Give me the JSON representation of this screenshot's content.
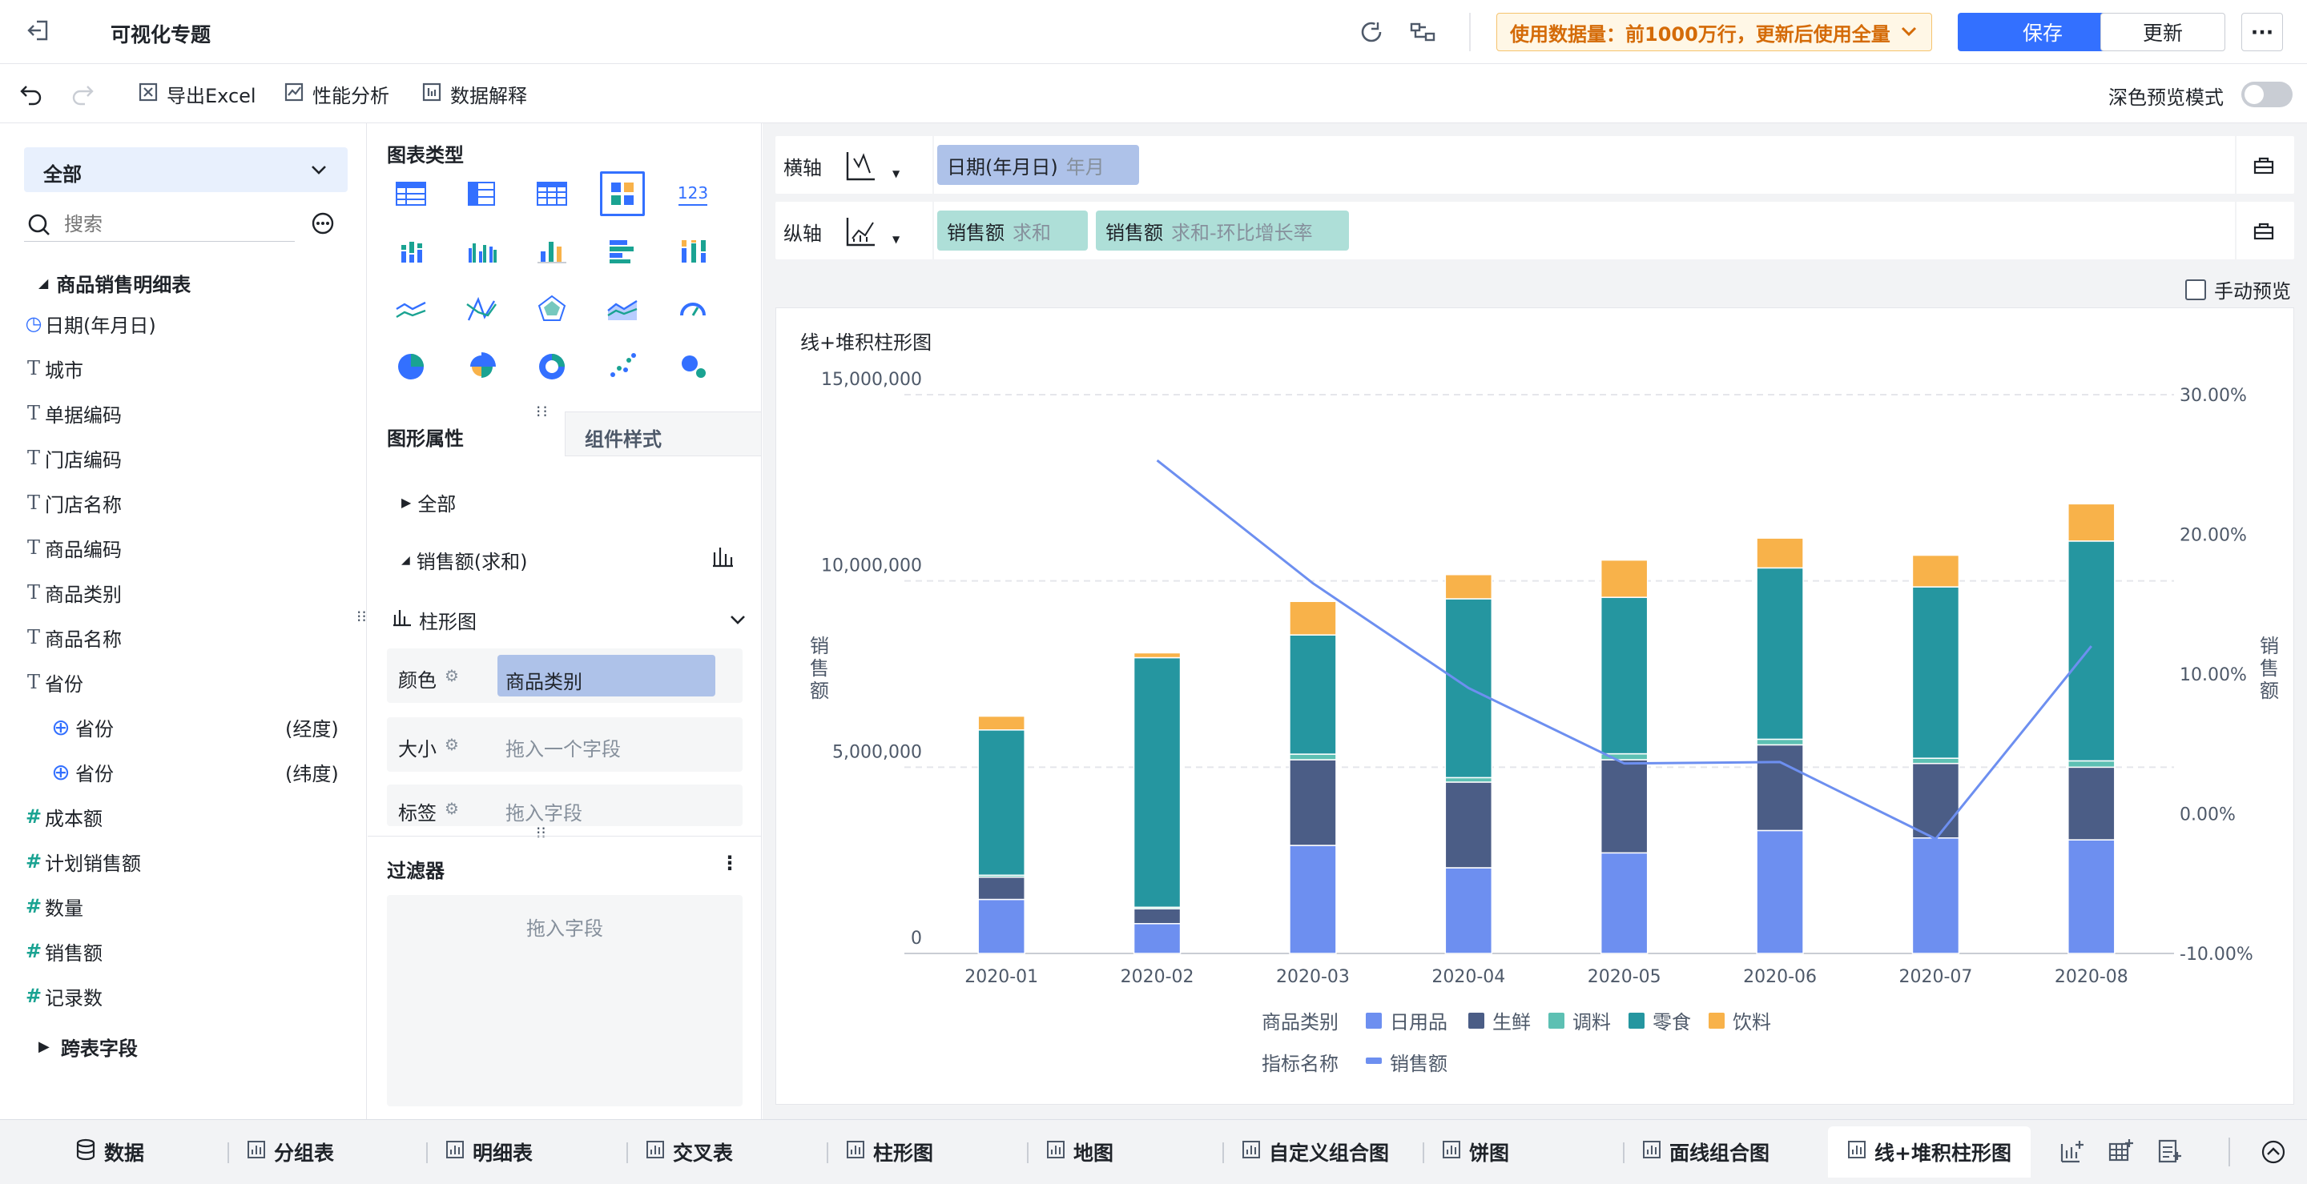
{
  "header": {
    "title": "可视化专题",
    "notice": "使用数据量：前1000万行，更新后使用全量",
    "save_label": "保存",
    "update_label": "更新",
    "more_label": "···"
  },
  "toolbar": {
    "export_label": "导出Excel",
    "perf_label": "性能分析",
    "explain_label": "数据解释",
    "dark_preview_label": "深色预览模式"
  },
  "left_panel": {
    "scope": "全部",
    "search_placeholder": "搜索",
    "table_name": "商品销售明细表",
    "fields": [
      {
        "label": "日期(年月日)",
        "type": "date"
      },
      {
        "label": "城市",
        "type": "text"
      },
      {
        "label": "单据编码",
        "type": "text"
      },
      {
        "label": "门店编码",
        "type": "text"
      },
      {
        "label": "门店名称",
        "type": "text"
      },
      {
        "label": "商品编码",
        "type": "text"
      },
      {
        "label": "商品类别",
        "type": "text"
      },
      {
        "label": "商品名称",
        "type": "text"
      },
      {
        "label": "省份",
        "type": "text"
      },
      {
        "label": "省份",
        "type": "geo",
        "suffix": "(经度)"
      },
      {
        "label": "省份",
        "type": "geo",
        "suffix": "(纬度)"
      },
      {
        "label": "成本额",
        "type": "number"
      },
      {
        "label": "计划销售额",
        "type": "number"
      },
      {
        "label": "数量",
        "type": "number"
      },
      {
        "label": "销售额",
        "type": "number"
      },
      {
        "label": "记录数",
        "type": "number-calc"
      }
    ],
    "cross_table_label": "跨表字段"
  },
  "mid_panel": {
    "chart_type_title": "图表类型",
    "kpi_icon_text": "123",
    "tab_graph_props": "图形属性",
    "tab_component_style": "组件样式",
    "all_label": "全部",
    "measure_label": "销售额(求和)",
    "mark_type": "柱形图",
    "color_label": "颜色",
    "color_value": "商品类别",
    "size_label": "大小",
    "size_placeholder": "拖入一个字段",
    "tag_label": "标签",
    "tag_placeholder": "拖入字段",
    "filter_title": "过滤器",
    "filter_placeholder": "拖入字段"
  },
  "axes": {
    "x_label": "横轴",
    "y_label": "纵轴",
    "x_pill": {
      "field": "日期(年月日)",
      "agg": "年月"
    },
    "y_pills": [
      {
        "field": "销售额",
        "agg": "求和"
      },
      {
        "field": "销售额",
        "agg": "求和-环比增长率"
      }
    ],
    "manual_preview_label": "手动预览"
  },
  "chart_data": {
    "type": "bar",
    "title": "线+堆积柱形图",
    "categories": [
      "2020-01",
      "2020-02",
      "2020-03",
      "2020-04",
      "2020-05",
      "2020-06",
      "2020-07",
      "2020-08"
    ],
    "stacked": true,
    "series": [
      {
        "name": "日用品",
        "color": "#6d8ff0",
        "values": [
          1450000,
          800000,
          2900000,
          2300000,
          2700000,
          3300000,
          3100000,
          3050000
        ]
      },
      {
        "name": "生鲜",
        "color": "#4b5d86",
        "values": [
          600000,
          400000,
          2300000,
          2300000,
          2500000,
          2300000,
          2000000,
          1950000
        ]
      },
      {
        "name": "调料",
        "color": "#5dc0b3",
        "values": [
          50000,
          40000,
          150000,
          120000,
          160000,
          150000,
          140000,
          170000
        ]
      },
      {
        "name": "零食",
        "color": "#2596a0",
        "values": [
          3900000,
          6700000,
          3200000,
          4800000,
          4200000,
          4600000,
          4600000,
          5900000
        ]
      },
      {
        "name": "饮料",
        "color": "#f8b24a",
        "values": [
          370000,
          130000,
          900000,
          650000,
          1000000,
          800000,
          850000,
          1000000
        ]
      }
    ],
    "line_series": {
      "name": "销售额",
      "color": "#6d8ff0",
      "axis": "right",
      "values": [
        null,
        25.3,
        16.5,
        9.0,
        3.6,
        3.7,
        -1.8,
        12.0
      ]
    },
    "ylabel_left": "销售额",
    "ylabel_right": "销售额",
    "ylim_left": [
      0,
      15000000
    ],
    "y_ticks_left": [
      "0",
      "5,000,000",
      "10,000,000",
      "15,000,000"
    ],
    "ylim_right": [
      -10,
      30
    ],
    "y_ticks_right": [
      "-10.00%",
      "0.00%",
      "10.00%",
      "20.00%",
      "30.00%"
    ],
    "legend_color_title": "商品类别",
    "legend_measure_title": "指标名称",
    "legend_position": "bottom",
    "grid": true
  },
  "bottom_tabs": {
    "data_label": "数据",
    "tabs": [
      "分组表",
      "明细表",
      "交叉表",
      "柱形图",
      "地图",
      "自定义组合图",
      "饼图",
      "面线组合图",
      "线+堆积柱形图"
    ]
  }
}
